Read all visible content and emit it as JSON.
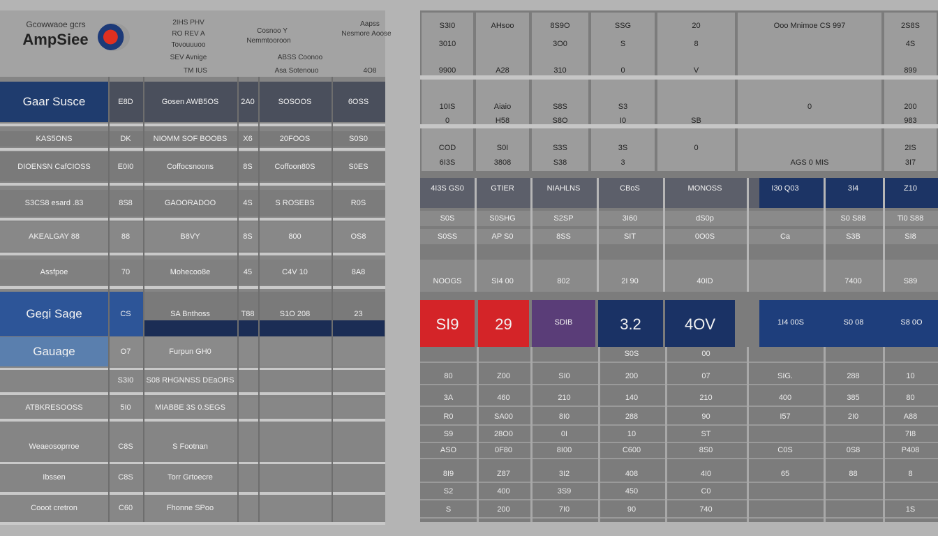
{
  "left": {
    "logo_caption": "Gcowwaoe gcrs",
    "logo": "AmpSiee",
    "header": [
      "2IHS PHV",
      "RO REV A",
      "Tovouuuoo",
      "SEV Avnige",
      "TM IUS",
      "Cosnoo Y",
      "Nemmtooroon",
      "Aapss",
      "Nesmore Aoose",
      "ABSS Coonoo",
      "Asa Sotenouo",
      "4O8"
    ],
    "rows": [
      [
        "Gaar Susce",
        "E8D",
        "Gosen AWB5OS",
        "2A0",
        "SOSOOS",
        "6OSS"
      ],
      [
        "KAS5ONS",
        "DK",
        "NIOMM SOF BOOBS",
        "X6",
        "20FOOS",
        "S0S0"
      ],
      [
        "DIOENSN CafCIOSS",
        "E0I0",
        "Coffocsnoons",
        "8S",
        "Coffoon80S",
        "S0ES"
      ],
      [
        "S3CS8 esard .83",
        "8S8",
        "GAOORADOO",
        "4S",
        "S ROSEBS",
        "R0S"
      ],
      [
        "AKEALGAY 88",
        "88",
        "B8VY",
        "8S",
        "800",
        "OS8"
      ],
      [
        "Assfpoe",
        "70",
        "Mohecoo8e",
        "45",
        "C4V 10",
        "8A8"
      ],
      [
        "Gegi Sage",
        "CS",
        "SA Bnthoss",
        "T88",
        "S1O 208",
        "23"
      ],
      [
        "Gauage",
        "O7",
        "Furpun GH0",
        null,
        null,
        null
      ],
      [
        null,
        "S3I0",
        "S08 RHGNNSS DEaORS",
        null,
        null,
        null
      ],
      [
        "ATBKRESOOSS",
        "5I0",
        "MIABBE 3S 0.SEGS",
        null,
        null,
        null
      ],
      [
        "Weaeosoprroe",
        "C8S",
        "S Footnan",
        null,
        null,
        null
      ],
      [
        "Ibssen",
        "C8S",
        "Torr Grtoecre",
        null,
        null,
        null
      ],
      [
        "Cooot cretron",
        "C60",
        "Fhonne SPoo",
        null,
        null,
        null
      ]
    ]
  },
  "right": {
    "top": [
      [
        "S3I0",
        "AHsoo",
        "8S9O",
        "SSG",
        "20",
        "Ooo Mnimoe CS 997",
        "2S8S"
      ],
      [
        "3010",
        null,
        "3O0",
        "S",
        "8",
        null,
        "4S"
      ],
      [
        "9900",
        "A28",
        "310",
        "0",
        "V",
        null,
        "899"
      ],
      [
        "10IS",
        "Aiaio",
        "S8S",
        "S3",
        null,
        "0",
        "200"
      ],
      [
        "0",
        "H58",
        "S8O",
        "I0",
        "SB",
        null,
        "983"
      ],
      [
        "COD",
        "S0I",
        "S3S",
        "3S",
        "0",
        null,
        "2IS"
      ],
      [
        "6I3S",
        "3808",
        "S38",
        "3",
        null,
        "AGS 0 MIS",
        "3I7"
      ]
    ],
    "mid_header": [
      "4I3S GS0",
      "GTIER",
      "NIAHLNS",
      "CBoS",
      "MONOSS",
      "I30 Q03",
      "3I4",
      "Z10"
    ],
    "mid_rows": [
      [
        "S0S",
        "S0SHG",
        "S2SP",
        "3I60",
        "dS0p",
        null,
        "S0 S88",
        "Ti0 S88"
      ],
      [
        "S0SS",
        "AP S0",
        "8SS",
        "SIT",
        "0O0S",
        "Ca",
        "S3B",
        "SI8"
      ],
      [
        "NOOGS",
        "SI4 00",
        "802",
        "2I 90",
        "40ID",
        null,
        "7400",
        "S89"
      ]
    ],
    "kpis": [
      "SI9",
      "29",
      "SDIB",
      "3.2",
      "4OV",
      "1I4 00S",
      "S0 08",
      "S8 0O"
    ],
    "bottom": [
      [
        null,
        null,
        null,
        "S0S",
        "00",
        null,
        null,
        null
      ],
      [
        "80",
        "Z00",
        "SI0",
        "200",
        "07",
        "SIG.",
        "288",
        "10"
      ],
      [
        "3A",
        "460",
        "210",
        "140",
        "210",
        "400",
        "385",
        "80"
      ],
      [
        "R0",
        "SA00",
        "8I0",
        "288",
        "90",
        "I57",
        "2I0",
        "A88"
      ],
      [
        "S9",
        "28O0",
        "0I",
        "10",
        "ST",
        null,
        null,
        "7I8"
      ],
      [
        "ASO",
        "0F80",
        "8I00",
        "C600",
        "8S0",
        "C0S",
        "0S8",
        "P408"
      ],
      [
        "8I9",
        "Z87",
        "3I2",
        "408",
        "4I0",
        "65",
        "88",
        "8"
      ],
      [
        "S2",
        "400",
        "3S9",
        "450",
        "C0",
        null,
        null,
        null
      ],
      [
        "S",
        "200",
        "7I0",
        "90",
        "740",
        null,
        null,
        "1S"
      ]
    ]
  }
}
